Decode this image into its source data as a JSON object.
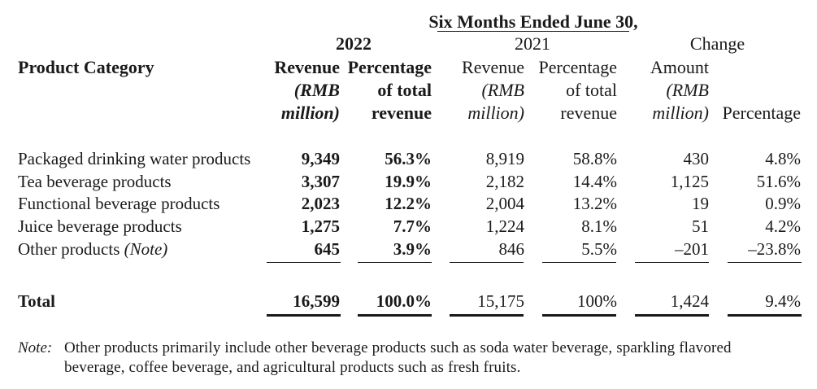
{
  "header": {
    "period": "Six Months Ended June 30,",
    "year_2022": "2022",
    "year_2021": "2021",
    "change": "Change",
    "product_category": "Product Category",
    "cols": {
      "rev22": [
        "Revenue",
        "(RMB",
        "million)"
      ],
      "pct22": [
        "Percentage",
        "of total",
        "revenue"
      ],
      "rev21": [
        "Revenue",
        "(RMB",
        "million)"
      ],
      "pct21": [
        "Percentage",
        "of total",
        "revenue"
      ],
      "amt": [
        "Amount",
        "(RMB",
        "million)"
      ],
      "chg_pct": "Percentage"
    }
  },
  "rows": [
    {
      "label": "Packaged drinking water products",
      "label_note": "",
      "rev22": "9,349",
      "pct22": "56.3%",
      "rev21": "8,919",
      "pct21": "58.8%",
      "amt": "430",
      "chg": "4.8%"
    },
    {
      "label": "Tea beverage products",
      "label_note": "",
      "rev22": "3,307",
      "pct22": "19.9%",
      "rev21": "2,182",
      "pct21": "14.4%",
      "amt": "1,125",
      "chg": "51.6%"
    },
    {
      "label": "Functional beverage products",
      "label_note": "",
      "rev22": "2,023",
      "pct22": "12.2%",
      "rev21": "2,004",
      "pct21": "13.2%",
      "amt": "19",
      "chg": "0.9%"
    },
    {
      "label": "Juice beverage products",
      "label_note": "",
      "rev22": "1,275",
      "pct22": "7.7%",
      "rev21": "1,224",
      "pct21": "8.1%",
      "amt": "51",
      "chg": "4.2%"
    },
    {
      "label": "Other products",
      "label_note": "(Note)",
      "rev22": "645",
      "pct22": "3.9%",
      "rev21": "846",
      "pct21": "5.5%",
      "amt": "–201",
      "chg": "–23.8%"
    }
  ],
  "total": {
    "label": "Total",
    "rev22": "16,599",
    "pct22": "100.0%",
    "rev21": "15,175",
    "pct21": "100%",
    "amt": "1,424",
    "chg": "9.4%"
  },
  "note": {
    "label": "Note:",
    "line1": "Other products primarily include other beverage products such as soda water beverage, sparkling flavored",
    "line2": "beverage, coffee beverage, and agricultural products such as fresh fruits."
  }
}
